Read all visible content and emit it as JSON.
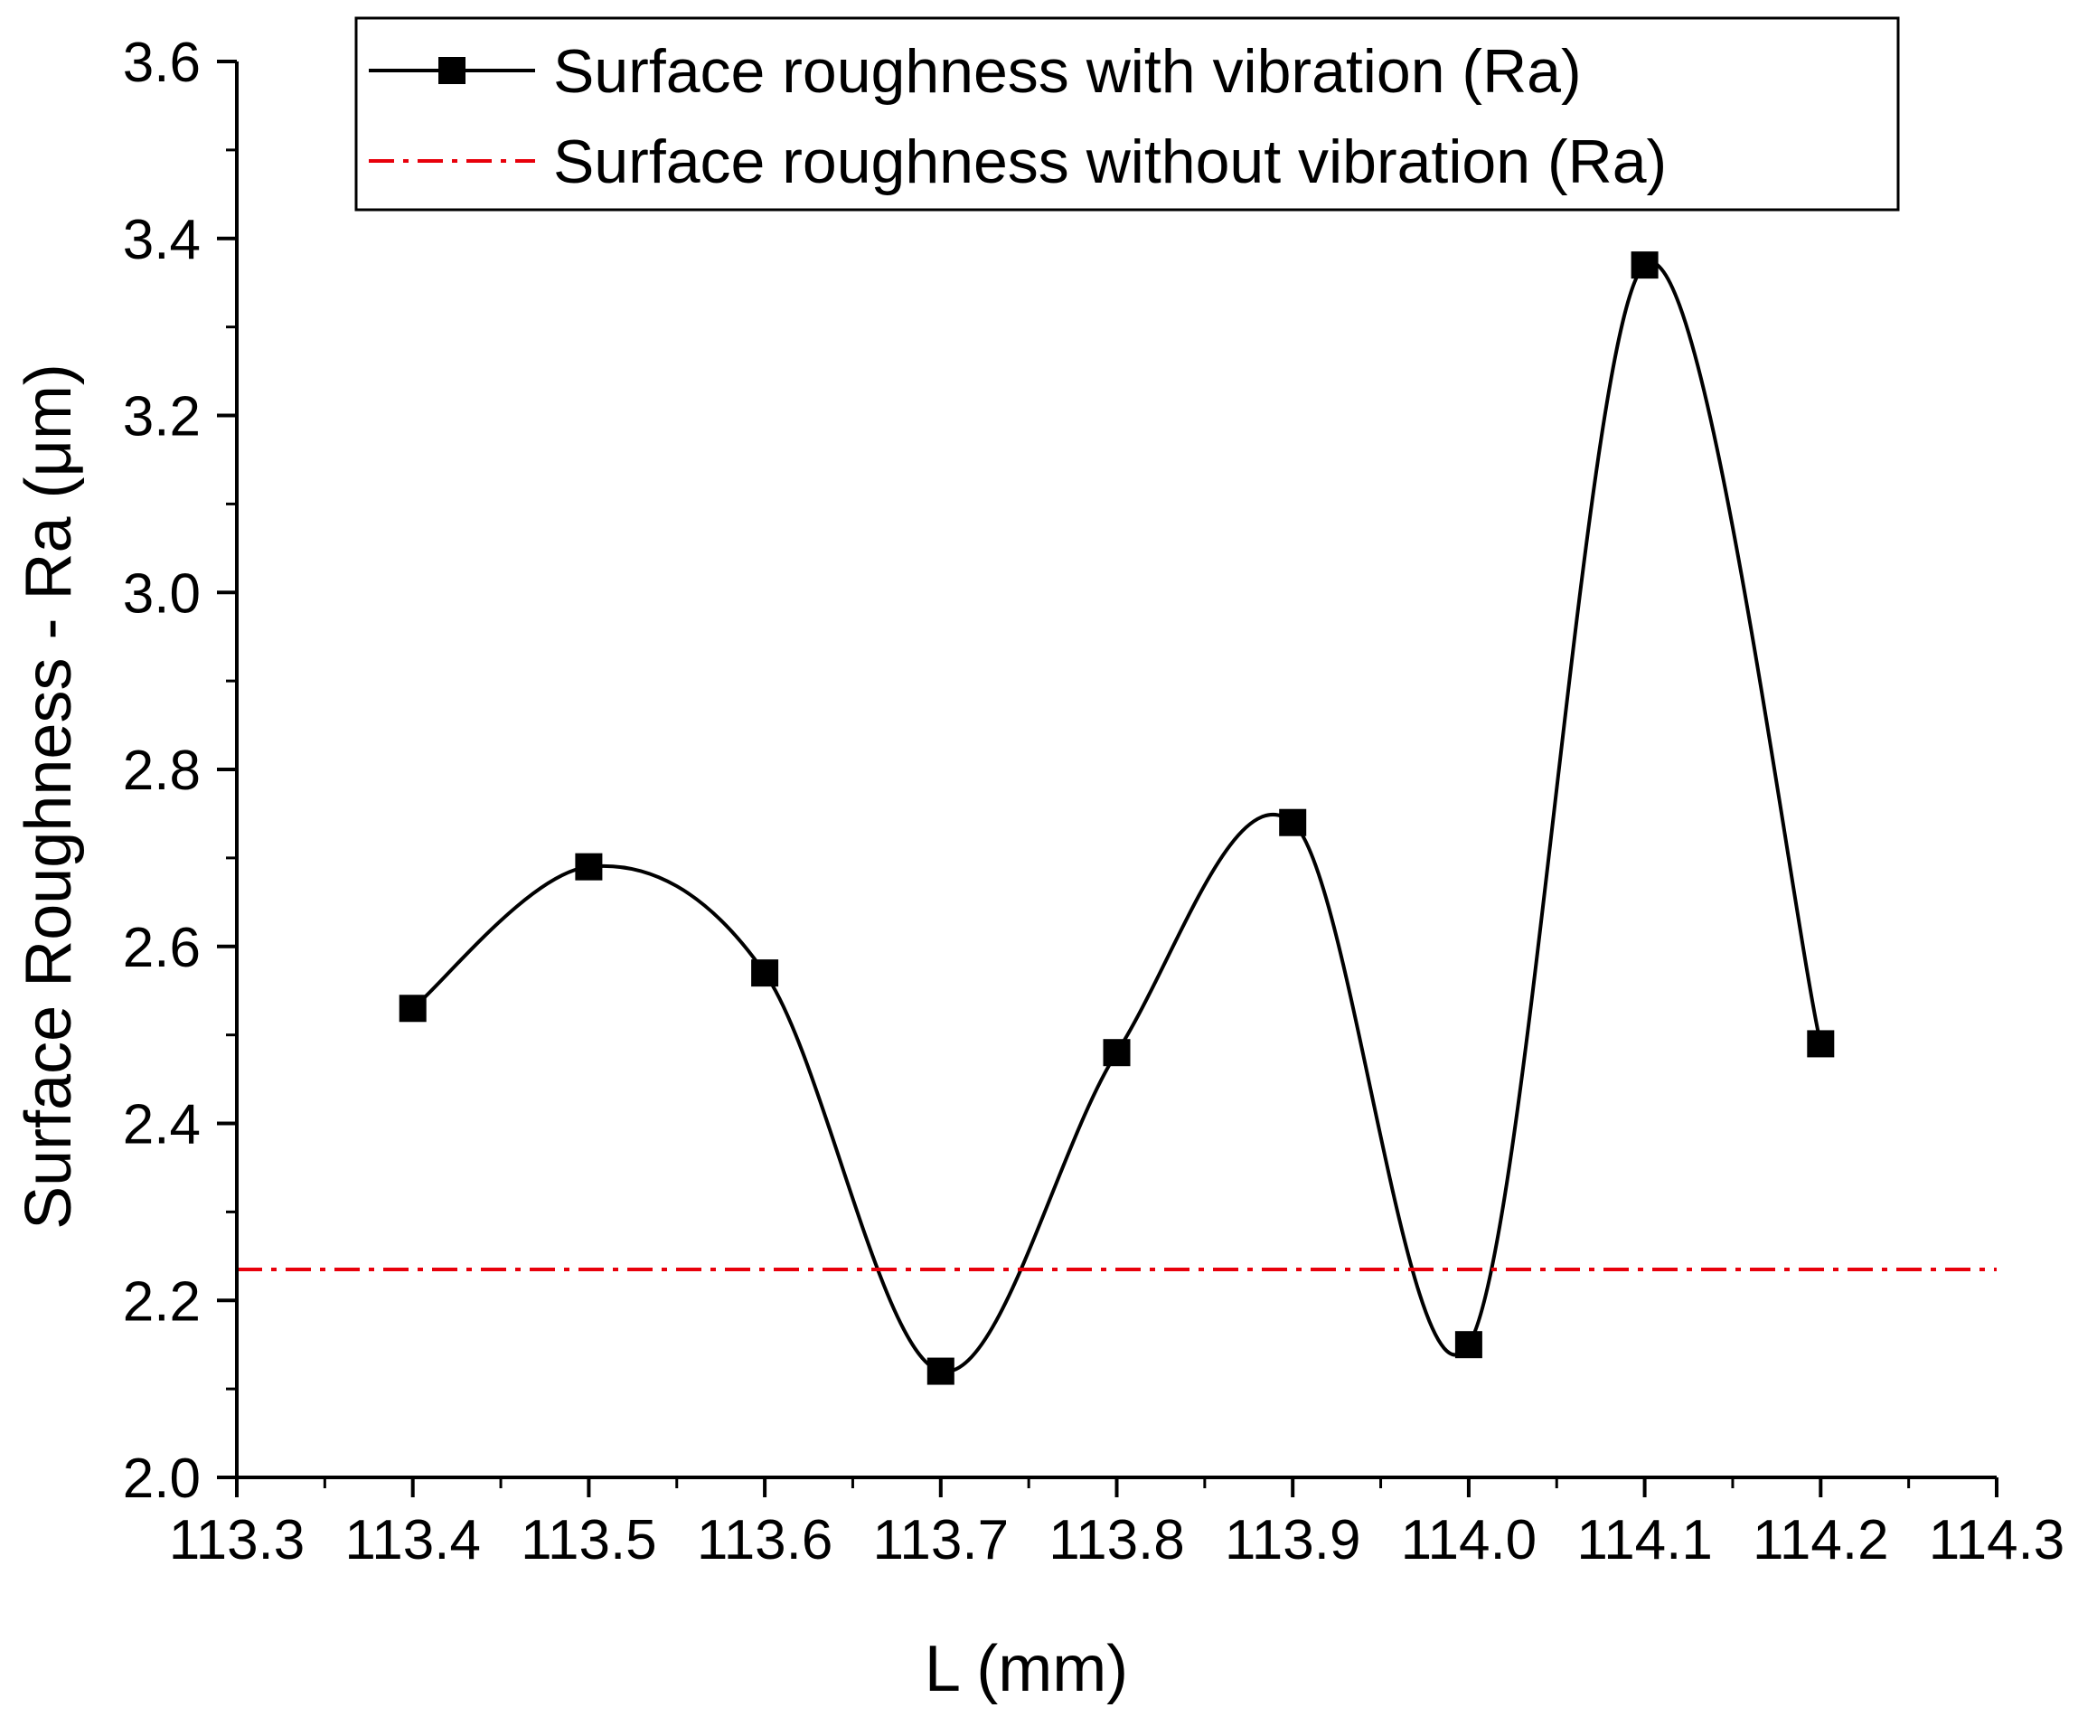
{
  "chart_data": {
    "type": "line",
    "title": "",
    "xlabel": "L (mm)",
    "ylabel": "Surface Roughness - Ra (μm)",
    "xlim": [
      113.3,
      114.3
    ],
    "ylim": [
      2.0,
      3.6
    ],
    "xticks": [
      "113.3",
      "113.4",
      "113.5",
      "113.6",
      "113.7",
      "113.8",
      "113.9",
      "114.0",
      "114.1",
      "114.2",
      "114.3"
    ],
    "yticks": [
      "2.0",
      "2.2",
      "2.4",
      "2.6",
      "2.8",
      "3.0",
      "3.2",
      "3.4",
      "3.6"
    ],
    "grid": false,
    "legend_position": "top",
    "series": [
      {
        "name": "Surface roughness with vibration (Ra)",
        "style": "smooth-line-square-markers",
        "color": "#000000",
        "x": [
          113.4,
          113.5,
          113.6,
          113.7,
          113.8,
          113.9,
          114.0,
          114.1,
          114.2
        ],
        "values": [
          2.53,
          2.69,
          2.57,
          2.12,
          2.48,
          2.74,
          2.15,
          3.37,
          2.49
        ]
      },
      {
        "name": "Surface roughness without vibration (Ra)",
        "style": "dash-dot-horizontal",
        "color": "#e8000b",
        "x": [
          113.3,
          114.3
        ],
        "values": [
          2.235,
          2.235
        ]
      }
    ]
  }
}
